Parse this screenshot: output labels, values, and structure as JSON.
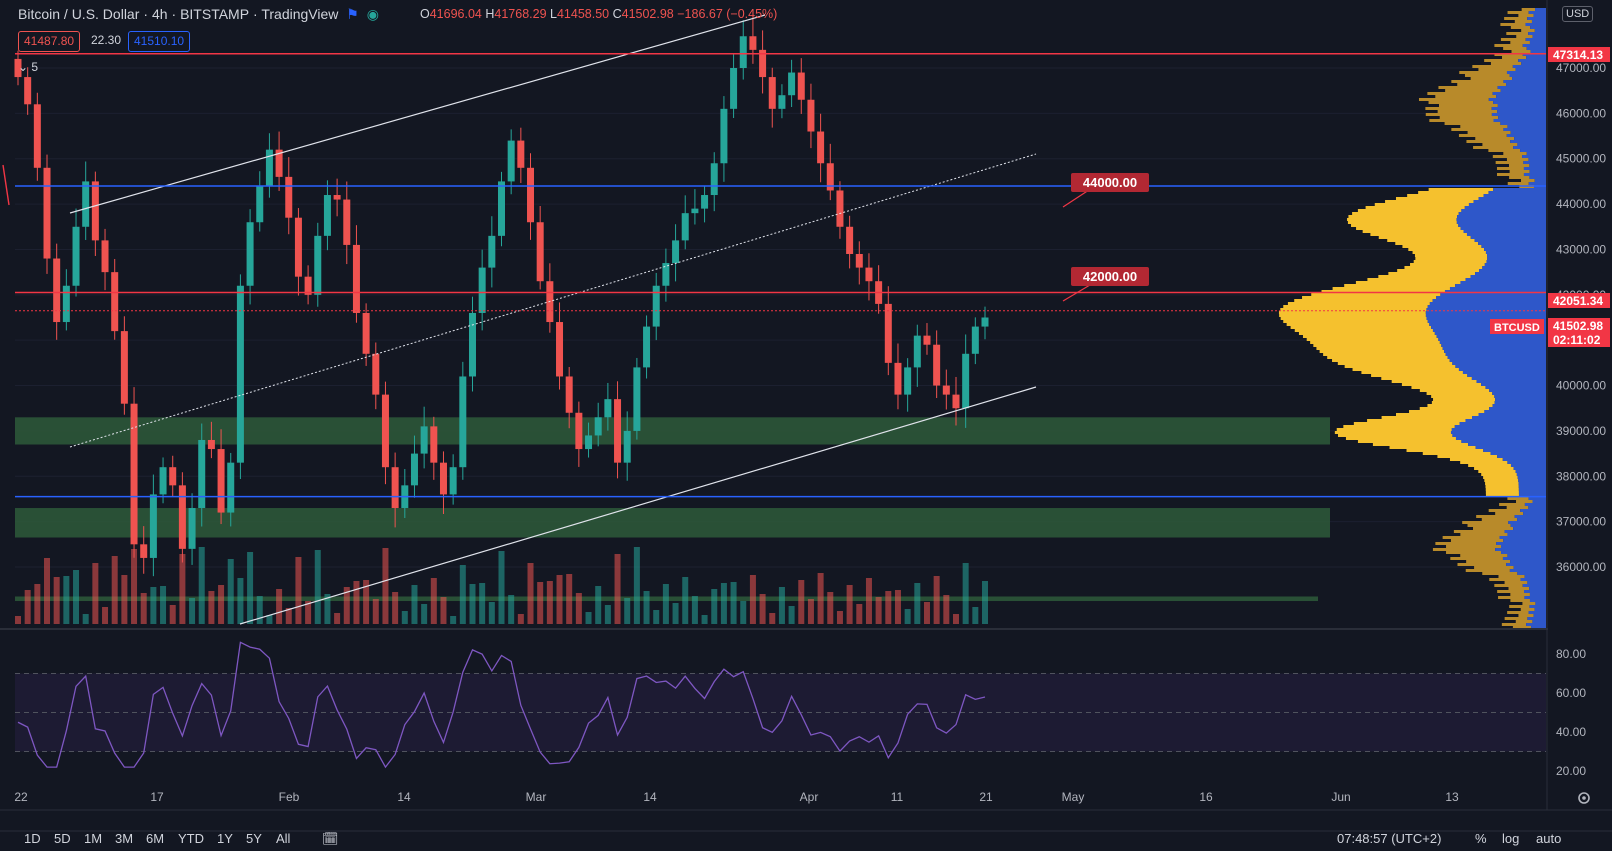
{
  "header": {
    "symbol_title": "Bitcoin / U.S. Dollar",
    "interval": "4h",
    "exchange": "BITSTAMP",
    "platform": "TradingView",
    "ohlc": {
      "o_label": "O",
      "o": "41696.04",
      "h_label": "H",
      "h": "41768.29",
      "l_label": "L",
      "l": "41458.50",
      "c_label": "C",
      "c": "41502.98",
      "change": "−186.67 (−0.45%)"
    },
    "bid": "41487.80",
    "spread": "22.30",
    "ask": "41510.10",
    "indicators_toggle": "5",
    "currency": "USD"
  },
  "price_axis": {
    "ticks": [
      "36000.00",
      "37000.00",
      "38000.00",
      "39000.00",
      "40000.00",
      "41000.00",
      "42000.00",
      "43000.00",
      "44000.00",
      "45000.00",
      "46000.00",
      "47000.00"
    ],
    "badges": [
      {
        "label": "47314.13",
        "value": 47314.13,
        "color": "#f23645"
      },
      {
        "label": "42051.34",
        "value": 42051.34,
        "color": "#f23645"
      },
      {
        "label": "41502.98",
        "value": 41502.98,
        "color": "#f23645"
      },
      {
        "label": "02:11:02",
        "value": 41300,
        "color": "#f23645"
      }
    ],
    "symbol_tag": "BTCUSD"
  },
  "rsi_axis": {
    "ticks": [
      "20.00",
      "40.00",
      "60.00",
      "80.00"
    ],
    "band": [
      30,
      70
    ],
    "mid": 50
  },
  "time_axis": {
    "labels": [
      "22",
      "17",
      "Feb",
      "14",
      "Mar",
      "14",
      "Apr",
      "11",
      "21",
      "May",
      "16",
      "Jun",
      "13"
    ]
  },
  "annotations": {
    "label_44000": "44000.00",
    "label_42000": "42000.00"
  },
  "bottom": {
    "timeframes": [
      "1D",
      "5D",
      "1M",
      "3M",
      "6M",
      "YTD",
      "1Y",
      "5Y",
      "All"
    ],
    "clock": "07:48:57 (UTC+2)",
    "percent": "%",
    "log": "log",
    "auto": "auto"
  },
  "colors": {
    "up": "#26a69a",
    "down": "#ef5350",
    "bg": "#131722",
    "red_line": "#f23645",
    "blue_line": "#2962ff",
    "zone": "#2e5a3a",
    "rsi": "#7e57c2",
    "vp_up": "#f5c12e",
    "vp_dn": "#2e57c9"
  },
  "chart_data": {
    "type": "candlestick",
    "title": "Bitcoin / U.S. Dollar",
    "interval": "4h",
    "ylim": [
      35200,
      48200
    ],
    "horizontal_levels": [
      {
        "value": 47314.13,
        "color": "red"
      },
      {
        "value": 44400,
        "color": "blue"
      },
      {
        "value": 42051.34,
        "color": "red"
      },
      {
        "value": 41650,
        "color": "red"
      },
      {
        "value": 37550,
        "color": "blue"
      }
    ],
    "zones": [
      [
        38700,
        39300
      ],
      [
        36650,
        37300
      ],
      [
        35250,
        35350
      ]
    ],
    "closes": [
      46800,
      46200,
      44800,
      42800,
      41400,
      42200,
      43500,
      44500,
      43200,
      42500,
      41200,
      39600,
      36500,
      36200,
      37600,
      38200,
      37800,
      36400,
      37300,
      38800,
      38600,
      37200,
      38300,
      42200,
      43600,
      44400,
      45200,
      44600,
      43700,
      42400,
      42000,
      43300,
      44200,
      44100,
      43100,
      41600,
      40700,
      39800,
      38200,
      37300,
      37800,
      38500,
      39100,
      38300,
      37600,
      38200,
      40200,
      41600,
      42600,
      43300,
      44500,
      45400,
      44800,
      43600,
      42300,
      41400,
      40200,
      39400,
      38600,
      38900,
      39300,
      39700,
      38300,
      39000,
      40400,
      41300,
      42200,
      42700,
      43200,
      43800,
      43900,
      44200,
      44900,
      46100,
      47000,
      47700,
      47400,
      46800,
      46100,
      46400,
      46900,
      46300,
      45600,
      44900,
      44300,
      43500,
      42900,
      42600,
      42300,
      41800,
      40500,
      39800,
      40400,
      41100,
      40900,
      40000,
      39800,
      39500,
      40700,
      41300,
      41500
    ]
  }
}
